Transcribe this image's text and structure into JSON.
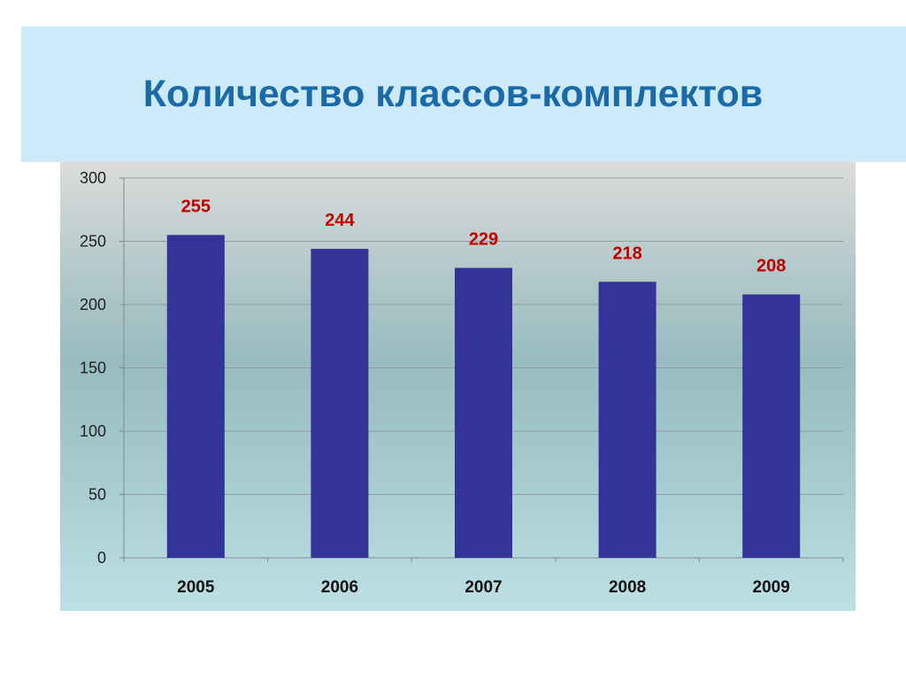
{
  "title": "Количество классов-комплектов",
  "colors": {
    "title": "#1b6aa8",
    "title_band": "#cdeafb",
    "bar": "#343399",
    "data_label": "#c00000",
    "grid": "#8f9b9c"
  },
  "chart_data": {
    "type": "bar",
    "title": "Количество классов-комплектов",
    "categories": [
      "2005",
      "2006",
      "2007",
      "2008",
      "2009"
    ],
    "values": [
      255,
      244,
      229,
      218,
      208
    ],
    "xlabel": "",
    "ylabel": "",
    "ylim": [
      0,
      300
    ],
    "yticks": [
      0,
      50,
      100,
      150,
      200,
      250,
      300
    ],
    "grid": true,
    "legend": "none",
    "data_labels": true
  }
}
